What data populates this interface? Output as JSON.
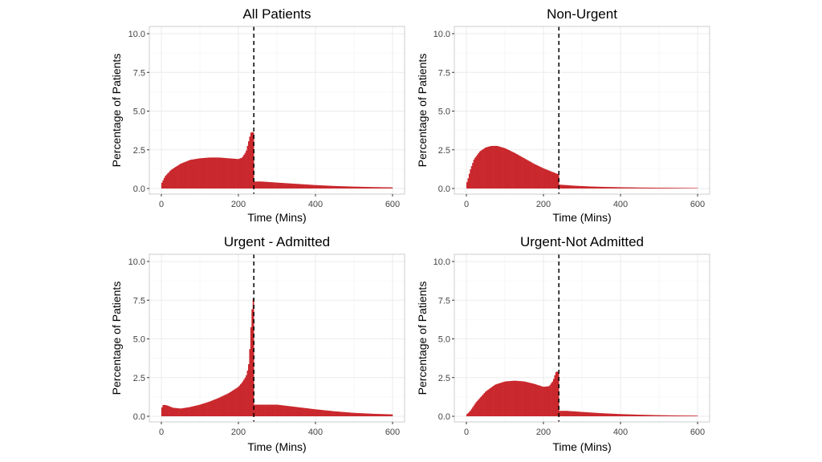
{
  "chart_data": [
    {
      "type": "area",
      "title": "All Patients",
      "xlabel": "Time (Mins)",
      "ylabel": "Percentage of Patients",
      "xlim": [
        0,
        600
      ],
      "ylim": [
        0,
        10
      ],
      "x_ticks": [
        0,
        200,
        400,
        600
      ],
      "y_ticks": [
        "0.0",
        "2.5",
        "5.0",
        "7.5",
        "10.0"
      ],
      "grid": true,
      "cutoff_x": 240,
      "series": [
        {
          "x": [
            0,
            10,
            25,
            50,
            75,
            100,
            125,
            150,
            175,
            200,
            210,
            220,
            226,
            232,
            236,
            240,
            241,
            260,
            300,
            350,
            400,
            450,
            500,
            550,
            600
          ],
          "values": [
            0.3,
            0.8,
            1.2,
            1.6,
            1.85,
            1.95,
            2.0,
            2.0,
            1.95,
            1.9,
            2.0,
            2.4,
            3.0,
            3.6,
            3.65,
            3.6,
            0.45,
            0.45,
            0.38,
            0.3,
            0.22,
            0.16,
            0.12,
            0.09,
            0.07
          ]
        }
      ]
    },
    {
      "type": "area",
      "title": "Non-Urgent",
      "xlabel": "Time (Mins)",
      "ylabel": "Percentage of Patients",
      "xlim": [
        0,
        600
      ],
      "ylim": [
        0,
        10
      ],
      "x_ticks": [
        0,
        200,
        400,
        600
      ],
      "y_ticks": [
        "0.0",
        "2.5",
        "5.0",
        "7.5",
        "10.0"
      ],
      "grid": true,
      "cutoff_x": 240,
      "series": [
        {
          "x": [
            0,
            5,
            10,
            20,
            35,
            50,
            65,
            80,
            100,
            125,
            150,
            175,
            200,
            220,
            235,
            240,
            241,
            280,
            320,
            360,
            400,
            450,
            500,
            550,
            600
          ],
          "values": [
            0.3,
            0.7,
            1.2,
            1.9,
            2.4,
            2.65,
            2.75,
            2.75,
            2.6,
            2.3,
            1.95,
            1.6,
            1.3,
            1.1,
            0.95,
            0.9,
            0.25,
            0.18,
            0.13,
            0.1,
            0.08,
            0.06,
            0.05,
            0.04,
            0.03
          ]
        }
      ]
    },
    {
      "type": "area",
      "title": "Urgent - Admitted",
      "xlabel": "Time (Mins)",
      "ylabel": "Percentage of Patients",
      "xlim": [
        0,
        600
      ],
      "ylim": [
        0,
        10
      ],
      "x_ticks": [
        0,
        200,
        400,
        600
      ],
      "y_ticks": [
        "0.0",
        "2.5",
        "5.0",
        "7.5",
        "10.0"
      ],
      "grid": true,
      "cutoff_x": 240,
      "series": [
        {
          "x": [
            0,
            5,
            15,
            30,
            50,
            75,
            100,
            125,
            150,
            175,
            200,
            210,
            220,
            226,
            230,
            234,
            238,
            240,
            241,
            260,
            300,
            350,
            400,
            450,
            500,
            550,
            600
          ],
          "values": [
            0.5,
            0.75,
            0.7,
            0.55,
            0.5,
            0.6,
            0.75,
            0.95,
            1.2,
            1.5,
            1.9,
            2.2,
            2.6,
            3.2,
            4.5,
            6.5,
            7.6,
            7.6,
            0.75,
            0.75,
            0.75,
            0.6,
            0.45,
            0.32,
            0.22,
            0.16,
            0.12
          ]
        }
      ]
    },
    {
      "type": "area",
      "title": "Urgent-Not Admitted",
      "xlabel": "Time (Mins)",
      "ylabel": "Percentage of Patients",
      "xlim": [
        0,
        600
      ],
      "ylim": [
        0,
        10
      ],
      "x_ticks": [
        0,
        200,
        400,
        600
      ],
      "y_ticks": [
        "0.0",
        "2.5",
        "5.0",
        "7.5",
        "10.0"
      ],
      "grid": true,
      "cutoff_x": 240,
      "series": [
        {
          "x": [
            0,
            10,
            25,
            50,
            75,
            100,
            125,
            150,
            175,
            200,
            215,
            225,
            232,
            236,
            240,
            241,
            260,
            300,
            350,
            400,
            450,
            500,
            550,
            600
          ],
          "values": [
            0.1,
            0.35,
            0.9,
            1.6,
            2.05,
            2.25,
            2.3,
            2.25,
            2.1,
            1.9,
            1.95,
            2.3,
            2.85,
            2.9,
            2.8,
            0.35,
            0.35,
            0.28,
            0.2,
            0.14,
            0.1,
            0.07,
            0.05,
            0.04
          ]
        }
      ]
    }
  ],
  "colors": {
    "fill": "#c9282d",
    "grid": "#ebebeb",
    "panel_border": "#cccccc",
    "cutoff_line": "#000000"
  }
}
